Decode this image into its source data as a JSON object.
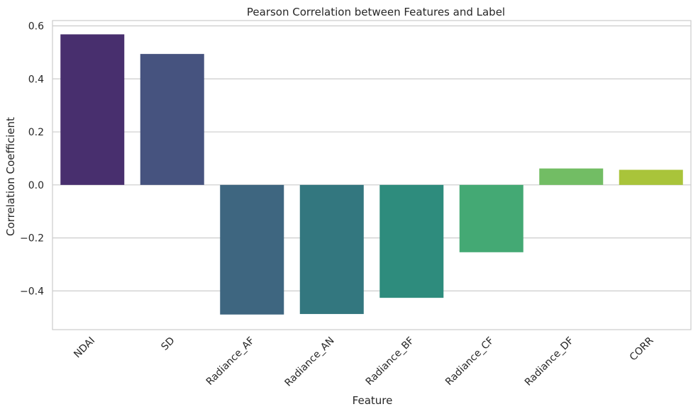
{
  "chart_data": {
    "type": "bar",
    "title": "Pearson Correlation between Features and Label",
    "xlabel": "Feature",
    "ylabel": "Correlation Coefficient",
    "categories": [
      "NDAI",
      "SD",
      "Radiance_AF",
      "Radiance_AN",
      "Radiance_BF",
      "Radiance_CF",
      "Radiance_DF",
      "CORR"
    ],
    "values": [
      0.568,
      0.494,
      -0.489,
      -0.487,
      -0.426,
      -0.254,
      0.062,
      0.057
    ],
    "ylim": [
      -0.546,
      0.62
    ],
    "yticks": [
      -0.4,
      -0.2,
      0.0,
      0.2,
      0.4,
      0.6
    ],
    "ytick_labels": [
      "−0.4",
      "−0.2",
      "0.0",
      "0.2",
      "0.4",
      "0.6"
    ],
    "grid": "horizontal",
    "palette": "viridis",
    "colors": [
      "#482f6e",
      "#46537f",
      "#3e6680",
      "#33777f",
      "#2e8c7d",
      "#44a974",
      "#72bd64",
      "#a9c43a"
    ],
    "x_tick_rotation": 45
  }
}
